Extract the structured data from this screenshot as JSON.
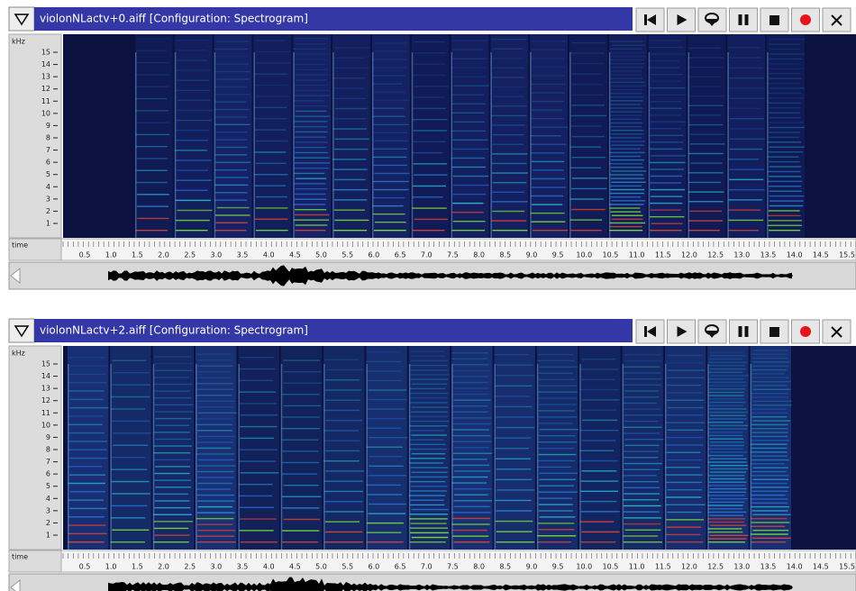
{
  "panels": [
    {
      "title": "violonNLactv+0.aiff [Configuration: Spectrogram]",
      "y_unit": "kHz",
      "y_ticks": [
        "1",
        "2",
        "3",
        "4",
        "5",
        "6",
        "7",
        "8",
        "9",
        "10",
        "11",
        "12",
        "13",
        "14",
        "15"
      ],
      "time_label": "time",
      "time_ticks": [
        "0.5",
        "1.0",
        "1.5",
        "2.0",
        "2.5",
        "3.0",
        "3.5",
        "4.0",
        "4.5",
        "5.0",
        "5.5",
        "6.0",
        "6.5",
        "7.0",
        "7.5",
        "8.0",
        "8.5",
        "9.0",
        "9.5",
        "10.0",
        "10.5",
        "11.0",
        "11.5",
        "12.0",
        "12.5",
        "13.0",
        "13.5",
        "14.0",
        "14.5",
        "15.5"
      ]
    },
    {
      "title": "violonNLactv+2.aiff [Configuration: Spectrogram]",
      "y_unit": "kHz",
      "y_ticks": [
        "1",
        "2",
        "3",
        "4",
        "5",
        "6",
        "7",
        "8",
        "9",
        "10",
        "11",
        "12",
        "13",
        "14",
        "15"
      ],
      "time_label": "time",
      "time_ticks": [
        "0.5",
        "1.0",
        "1.5",
        "2.0",
        "2.5",
        "3.0",
        "3.5",
        "4.0",
        "4.5",
        "5.0",
        "5.5",
        "6.0",
        "6.5",
        "7.0",
        "7.5",
        "8.0",
        "8.5",
        "9.0",
        "9.5",
        "10.0",
        "10.5",
        "11.0",
        "11.5",
        "12.0",
        "12.5",
        "13.0",
        "13.5",
        "14.0",
        "14.5",
        "15.5"
      ]
    }
  ]
}
